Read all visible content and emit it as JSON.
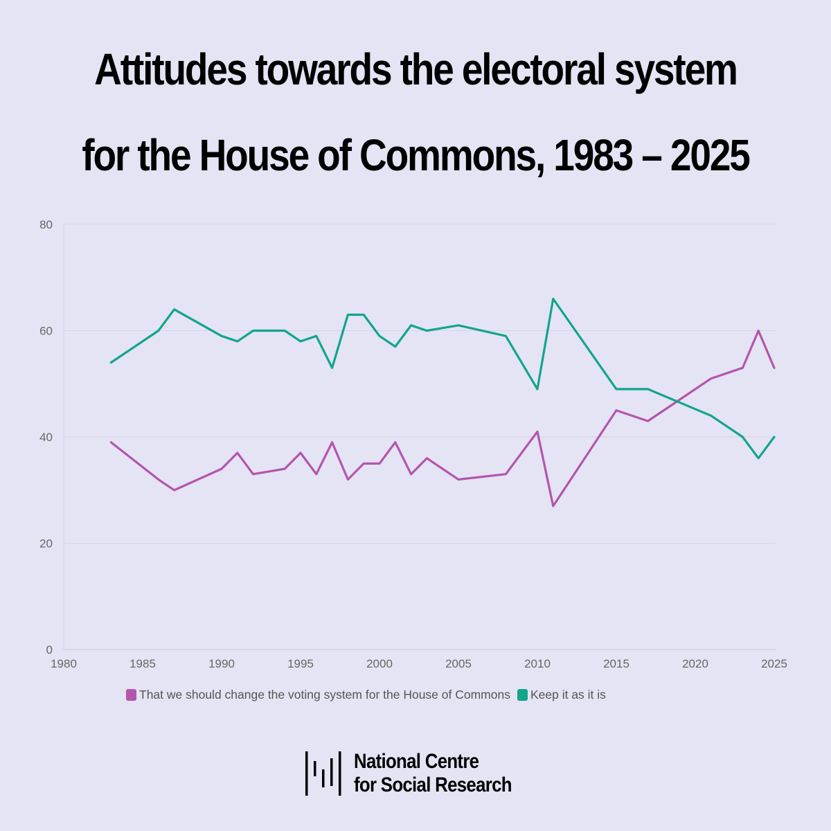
{
  "title": {
    "line1": "Attitudes towards the electoral system",
    "line2": "for the House of Commons, 1983 – 2025"
  },
  "chart_data": {
    "type": "line",
    "title": "Attitudes towards the electoral system for the House of Commons, 1983 – 2025",
    "xlabel": "",
    "ylabel": "",
    "xlim": [
      1980,
      2025
    ],
    "ylim": [
      0,
      80
    ],
    "xticks": [
      1980,
      1985,
      1990,
      1995,
      2000,
      2005,
      2010,
      2015,
      2020,
      2025
    ],
    "yticks": [
      0,
      20,
      40,
      60,
      80
    ],
    "grid": true,
    "legend_position": "bottom",
    "series": [
      {
        "name": "That we should change the voting system for the House of Commons",
        "color": "#b455ad",
        "x": [
          1983,
          1986,
          1987,
          1990,
          1991,
          1992,
          1994,
          1995,
          1996,
          1997,
          1998,
          1999,
          2000,
          2001,
          2002,
          2003,
          2005,
          2008,
          2010,
          2011,
          2015,
          2017,
          2021,
          2023,
          2024,
          2025
        ],
        "values": [
          39,
          32,
          30,
          34,
          37,
          33,
          34,
          37,
          33,
          39,
          32,
          35,
          35,
          39,
          33,
          36,
          32,
          33,
          41,
          27,
          45,
          43,
          51,
          53,
          60,
          53
        ]
      },
      {
        "name": "Keep it as it is",
        "color": "#12a58a",
        "x": [
          1983,
          1986,
          1987,
          1990,
          1991,
          1992,
          1994,
          1995,
          1996,
          1997,
          1998,
          1999,
          2000,
          2001,
          2002,
          2003,
          2005,
          2008,
          2010,
          2011,
          2015,
          2017,
          2021,
          2023,
          2024,
          2025
        ],
        "values": [
          54,
          60,
          64,
          59,
          58,
          60,
          60,
          58,
          59,
          53,
          63,
          63,
          59,
          57,
          61,
          60,
          61,
          59,
          49,
          66,
          49,
          49,
          44,
          40,
          36,
          40
        ]
      }
    ]
  },
  "logo": {
    "line1": "National Centre",
    "line2": "for Social Research"
  }
}
